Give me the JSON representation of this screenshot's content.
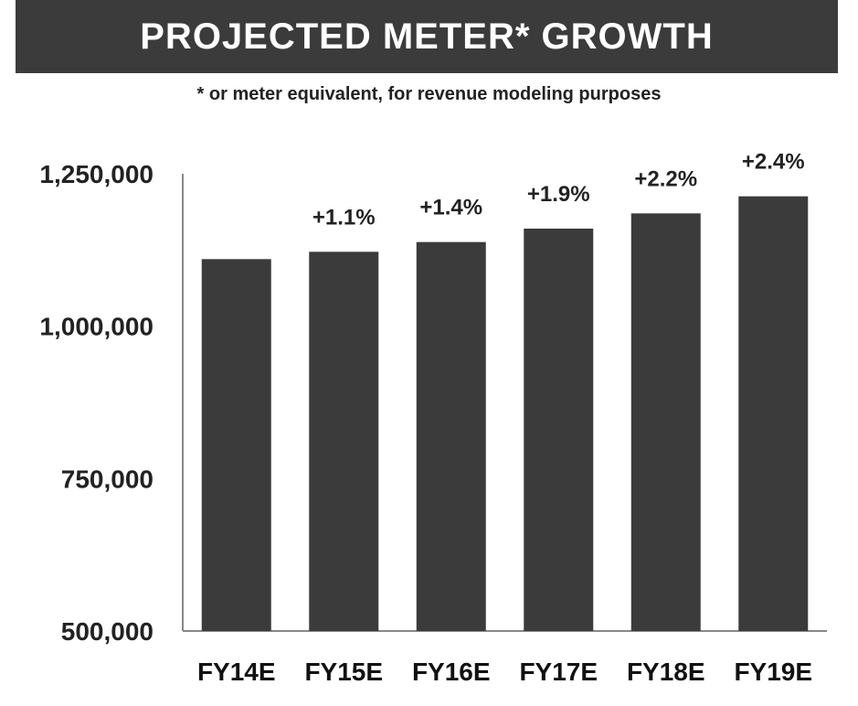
{
  "header": {
    "title": "PROJECTED METER* GROWTH",
    "subtitle": "* or meter equivalent, for revenue modeling purposes"
  },
  "colors": {
    "banner": "#3b3b3b",
    "bar": "#3b3b3b",
    "axis": "#888888"
  },
  "chart_data": {
    "type": "bar",
    "categories": [
      "FY14E",
      "FY15E",
      "FY16E",
      "FY17E",
      "FY18E",
      "FY19E"
    ],
    "values": [
      1110000,
      1122000,
      1138000,
      1160000,
      1185000,
      1213000
    ],
    "data_labels": [
      "",
      "+1.1%",
      "+1.4%",
      "+1.9%",
      "+2.2%",
      "+2.4%"
    ],
    "ylim": [
      500000,
      1250000
    ],
    "yticks": [
      500000,
      750000,
      1000000,
      1250000
    ],
    "ytick_labels": [
      "500,000",
      "750,000",
      "1,000,000",
      "1,250,000"
    ],
    "grid": false,
    "legend": "none"
  }
}
